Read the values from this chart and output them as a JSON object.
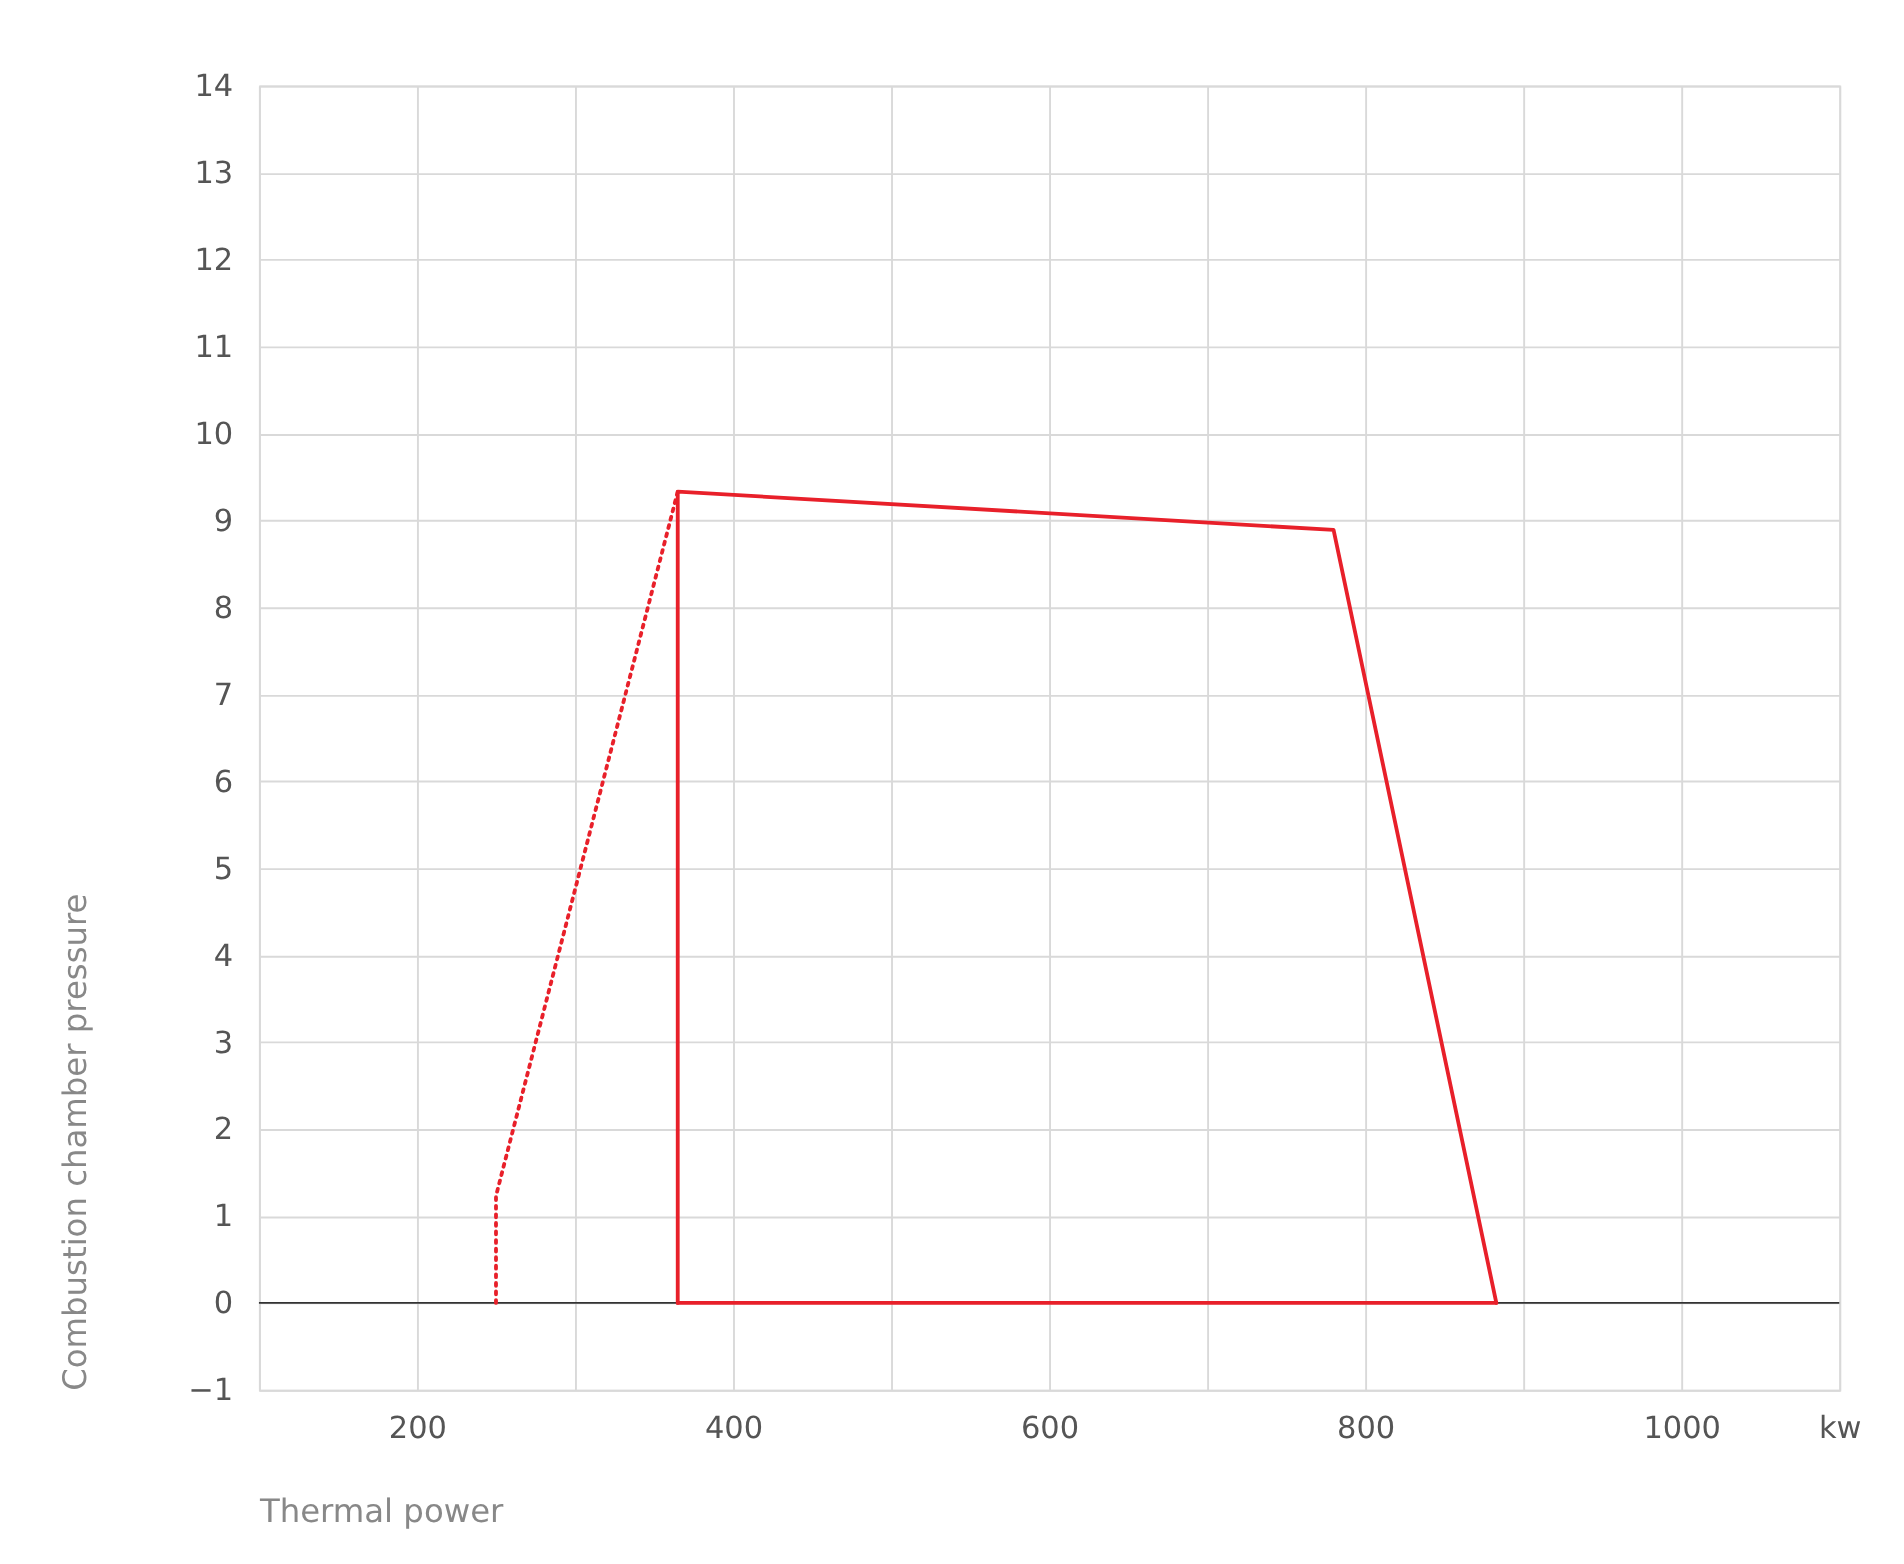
{
  "chart_data": {
    "type": "line",
    "xlabel": "Thermal power",
    "ylabel": "Combustion chamber pressure",
    "xlim": [
      100,
      1100
    ],
    "ylim": [
      -1,
      14
    ],
    "xticks": [
      {
        "value": 100,
        "label": null
      },
      200,
      {
        "value": 300,
        "label": null
      },
      400,
      {
        "value": 500,
        "label": null
      },
      600,
      {
        "value": 700,
        "label": null
      },
      800,
      {
        "value": 900,
        "label": null
      },
      1000,
      {
        "value": 1100,
        "label": "kw"
      }
    ],
    "yticks": [
      -1,
      0,
      1,
      2,
      3,
      4,
      5,
      6,
      7,
      8,
      9,
      10,
      11,
      12,
      13,
      14
    ],
    "grid": true,
    "marker": "none",
    "ref_lines": [
      {
        "axis": "y",
        "value": 0,
        "color": "#333333"
      }
    ],
    "series": [
      {
        "color": "#e8202a",
        "line_style": "dotted",
        "x": [
          250,
          250,
          365
        ],
        "values": [
          0,
          1.23,
          9.33
        ]
      },
      {
        "color": "#e8202a",
        "line_style": "solid",
        "x": [
          365,
          365,
          780,
          883
        ],
        "values": [
          0,
          9.33,
          8.89,
          0
        ]
      },
      {
        "color": "#e8202a",
        "line_style": "solid",
        "x": [
          365,
          883
        ],
        "values": [
          0,
          0
        ]
      }
    ]
  }
}
